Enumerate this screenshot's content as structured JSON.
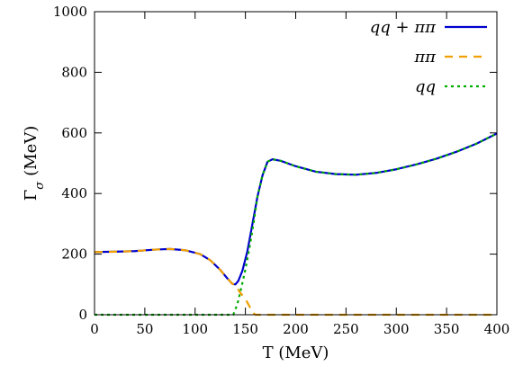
{
  "chart_data": {
    "type": "line",
    "xlabel": "T (MeV)",
    "ylabel_main": "Γ",
    "ylabel_sub": "σ",
    "ylabel_unit": "(MeV)",
    "xlim": [
      0,
      400
    ],
    "ylim": [
      0,
      1000
    ],
    "x_ticks": [
      "0",
      "50",
      "100",
      "150",
      "200",
      "250",
      "300",
      "350",
      "400"
    ],
    "y_ticks": [
      "0",
      "200",
      "400",
      "600",
      "800",
      "1000"
    ],
    "grid": false,
    "legend_position": "top-right",
    "series": [
      {
        "name": "qq + ππ",
        "color": "#0000cc",
        "style": "solid",
        "points": [
          [
            0,
            207
          ],
          [
            20,
            208
          ],
          [
            40,
            210
          ],
          [
            60,
            215
          ],
          [
            75,
            217
          ],
          [
            90,
            213
          ],
          [
            105,
            200
          ],
          [
            115,
            180
          ],
          [
            125,
            148
          ],
          [
            132,
            120
          ],
          [
            137,
            102
          ],
          [
            140,
            100
          ],
          [
            143,
            112
          ],
          [
            147,
            145
          ],
          [
            152,
            210
          ],
          [
            157,
            300
          ],
          [
            162,
            390
          ],
          [
            167,
            460
          ],
          [
            172,
            505
          ],
          [
            177,
            513
          ],
          [
            185,
            508
          ],
          [
            200,
            490
          ],
          [
            220,
            472
          ],
          [
            240,
            464
          ],
          [
            260,
            462
          ],
          [
            280,
            468
          ],
          [
            300,
            480
          ],
          [
            320,
            496
          ],
          [
            340,
            515
          ],
          [
            360,
            538
          ],
          [
            380,
            565
          ],
          [
            400,
            598
          ]
        ]
      },
      {
        "name": "ππ",
        "color": "#f0a000",
        "style": "dashed",
        "points": [
          [
            0,
            207
          ],
          [
            20,
            208
          ],
          [
            40,
            210
          ],
          [
            60,
            215
          ],
          [
            75,
            217
          ],
          [
            90,
            213
          ],
          [
            105,
            200
          ],
          [
            115,
            180
          ],
          [
            125,
            148
          ],
          [
            132,
            120
          ],
          [
            137,
            102
          ],
          [
            140,
            98
          ],
          [
            145,
            72
          ],
          [
            150,
            52
          ],
          [
            154,
            28
          ],
          [
            157,
            8
          ],
          [
            160,
            0
          ],
          [
            200,
            0
          ],
          [
            300,
            0
          ],
          [
            400,
            0
          ]
        ]
      },
      {
        "name": "qq",
        "color": "#00aa00",
        "style": "dotted",
        "points": [
          [
            0,
            0
          ],
          [
            50,
            0
          ],
          [
            100,
            0
          ],
          [
            130,
            0
          ],
          [
            138,
            0
          ],
          [
            142,
            35
          ],
          [
            146,
            90
          ],
          [
            150,
            150
          ],
          [
            154,
            220
          ],
          [
            158,
            300
          ],
          [
            162,
            390
          ],
          [
            167,
            460
          ],
          [
            172,
            505
          ],
          [
            177,
            513
          ],
          [
            185,
            508
          ],
          [
            200,
            490
          ],
          [
            220,
            472
          ],
          [
            240,
            464
          ],
          [
            260,
            462
          ],
          [
            280,
            468
          ],
          [
            300,
            480
          ],
          [
            320,
            496
          ],
          [
            340,
            515
          ],
          [
            360,
            538
          ],
          [
            380,
            565
          ],
          [
            400,
            598
          ]
        ]
      }
    ]
  }
}
